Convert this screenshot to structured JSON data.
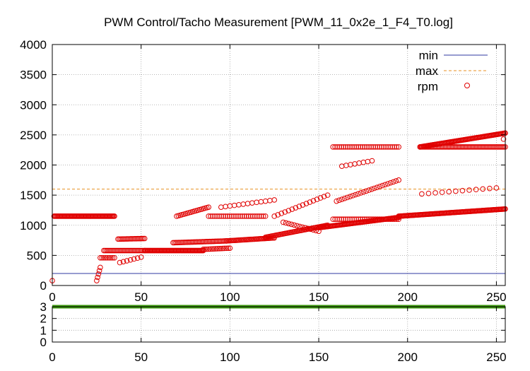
{
  "chart_data": [
    {
      "type": "scatter",
      "title": "PWM Control/Tacho Measurement [PWM_11_0x2e_1_F4_T0.log]",
      "xlabel": "",
      "ylabel": "",
      "xlim": [
        0,
        255
      ],
      "ylim": [
        0,
        4000
      ],
      "x_ticks": [
        0,
        50,
        100,
        150,
        200,
        250
      ],
      "y_ticks": [
        0,
        500,
        1000,
        1500,
        2000,
        2500,
        3000,
        3500,
        4000
      ],
      "grid": true,
      "legend_position": "top-right",
      "series": [
        {
          "name": "min",
          "kind": "line",
          "color": "#2f3aa0",
          "value": 200
        },
        {
          "name": "max",
          "kind": "line",
          "dash": true,
          "color": "#e89020",
          "value": 1600
        },
        {
          "name": "rpm",
          "kind": "points",
          "color": "#e00000",
          "segments": [
            {
              "x0": 0,
              "x1": 0,
              "y0": 80,
              "y1": 80,
              "step": 1
            },
            {
              "x0": 1,
              "x1": 35,
              "y0": 1150,
              "y1": 1150,
              "step": 0.5
            },
            {
              "x0": 25,
              "x1": 27,
              "y0": 80,
              "y1": 300,
              "step": 0.5
            },
            {
              "x0": 27,
              "x1": 35,
              "y0": 460,
              "y1": 460,
              "step": 1
            },
            {
              "x0": 29,
              "x1": 52,
              "y0": 580,
              "y1": 580,
              "step": 0.8
            },
            {
              "x0": 37,
              "x1": 52,
              "y0": 770,
              "y1": 780,
              "step": 0.8
            },
            {
              "x0": 38,
              "x1": 50,
              "y0": 380,
              "y1": 470,
              "step": 2
            },
            {
              "x0": 52,
              "x1": 85,
              "y0": 580,
              "y1": 580,
              "step": 0.5
            },
            {
              "x0": 68,
              "x1": 98,
              "y0": 710,
              "y1": 740,
              "step": 0.8
            },
            {
              "x0": 70,
              "x1": 88,
              "y0": 1150,
              "y1": 1300,
              "step": 1
            },
            {
              "x0": 85,
              "x1": 100,
              "y0": 600,
              "y1": 620,
              "step": 1
            },
            {
              "x0": 98,
              "x1": 125,
              "y0": 740,
              "y1": 790,
              "step": 0.7
            },
            {
              "x0": 88,
              "x1": 120,
              "y0": 1150,
              "y1": 1150,
              "step": 1.2
            },
            {
              "x0": 95,
              "x1": 125,
              "y0": 1300,
              "y1": 1420,
              "step": 2.5
            },
            {
              "x0": 120,
              "x1": 155,
              "y0": 800,
              "y1": 1000,
              "step": 0.7
            },
            {
              "x0": 125,
              "x1": 155,
              "y0": 1150,
              "y1": 1500,
              "step": 2
            },
            {
              "x0": 130,
              "x1": 150,
              "y0": 1050,
              "y1": 900,
              "step": 1.5
            },
            {
              "x0": 150,
              "x1": 195,
              "y0": 960,
              "y1": 1130,
              "step": 0.5
            },
            {
              "x0": 158,
              "x1": 195,
              "y0": 1100,
              "y1": 1100,
              "step": 1.2
            },
            {
              "x0": 158,
              "x1": 195,
              "y0": 2300,
              "y1": 2300,
              "step": 1.2
            },
            {
              "x0": 160,
              "x1": 195,
              "y0": 1400,
              "y1": 1750,
              "step": 1.5
            },
            {
              "x0": 163,
              "x1": 180,
              "y0": 1980,
              "y1": 2070,
              "step": 2.5
            },
            {
              "x0": 195,
              "x1": 255,
              "y0": 1150,
              "y1": 1270,
              "step": 0.5
            },
            {
              "x0": 207,
              "x1": 255,
              "y0": 2300,
              "y1": 2300,
              "step": 0.8
            },
            {
              "x0": 207,
              "x1": 255,
              "y0": 2300,
              "y1": 2530,
              "step": 0.5
            },
            {
              "x0": 208,
              "x1": 250,
              "y0": 1520,
              "y1": 1620,
              "step": 4
            },
            {
              "x0": 254,
              "x1": 254,
              "y0": 2430,
              "y1": 2430,
              "step": 1
            }
          ]
        }
      ]
    },
    {
      "type": "line",
      "title": "",
      "xlim": [
        0,
        255
      ],
      "ylim": [
        0,
        3
      ],
      "x_ticks": [
        0,
        50,
        100,
        150,
        200,
        250
      ],
      "y_ticks": [
        0,
        1,
        2,
        3
      ],
      "grid": true,
      "series": [
        {
          "name": "",
          "color": "#3c9a0e",
          "x": [
            0,
            255
          ],
          "y": [
            3,
            3
          ]
        }
      ]
    }
  ]
}
